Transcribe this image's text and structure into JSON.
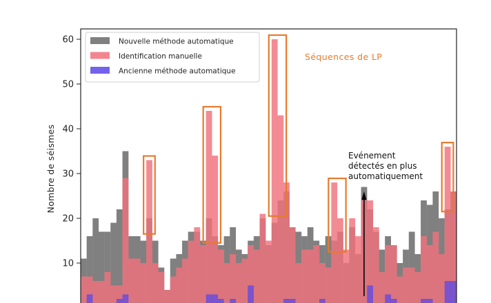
{
  "chart_data": {
    "type": "bar",
    "ylabel": "Nombre de séismes",
    "xlabel": "",
    "ylim": [
      0,
      63
    ],
    "yticks": [
      10,
      20,
      30,
      40,
      50,
      60
    ],
    "grid": false,
    "legend_position": "top-left",
    "series": [
      {
        "name": "Nouvelle méthode automatique",
        "color": "#808080",
        "values": [
          11,
          16,
          20,
          17,
          17,
          19,
          22,
          35,
          16,
          16,
          15,
          20,
          15,
          9,
          4,
          11,
          12,
          15,
          17,
          17,
          15,
          20,
          16,
          14,
          16,
          18,
          13,
          12,
          15,
          16,
          20,
          14,
          19,
          24,
          26,
          18,
          17,
          16,
          18,
          15,
          14,
          16,
          15,
          17,
          10,
          18,
          12,
          27,
          22,
          17,
          13,
          16,
          14,
          10,
          13,
          17,
          12,
          24,
          23,
          26,
          20,
          22,
          26
        ]
      },
      {
        "name": "Identification manuelle",
        "color": "#f0717c",
        "values": [
          7,
          7,
          6,
          6,
          8,
          5,
          5,
          29,
          11,
          11,
          10,
          33,
          10,
          8,
          4,
          7,
          9,
          11,
          15,
          18,
          14,
          44,
          34,
          13,
          10,
          12,
          10,
          11,
          14,
          13,
          21,
          15,
          60,
          43,
          28,
          18,
          10,
          13,
          13,
          14,
          10,
          9,
          28,
          20,
          13,
          20,
          16,
          24,
          24,
          18,
          8,
          14,
          14,
          7,
          9,
          9,
          8,
          16,
          14,
          17,
          12,
          36,
          26
        ]
      },
      {
        "name": "Ancienne méthode automatique",
        "color": "#5a48e8",
        "values": [
          1,
          3,
          0,
          0,
          1,
          0,
          2,
          3,
          0,
          0,
          1,
          0,
          0,
          0,
          0,
          0,
          0,
          0,
          0,
          0,
          0,
          3,
          3,
          2,
          1,
          2,
          0,
          0,
          5,
          0,
          0,
          0,
          0,
          0,
          2,
          2,
          0,
          0,
          1,
          0,
          2,
          0,
          0,
          0,
          1,
          0,
          0,
          0,
          5,
          1,
          0,
          3,
          2,
          0,
          0,
          0,
          0,
          2,
          2,
          1,
          0,
          6,
          6
        ]
      }
    ],
    "annotations": [
      {
        "type": "rect_label",
        "text": "Séquences de LP",
        "color": "#e87a2c"
      },
      {
        "type": "arrow_label",
        "lines": [
          "Evénement",
          "détectés en plus",
          "automatiquement"
        ],
        "color": "#000000"
      }
    ]
  }
}
